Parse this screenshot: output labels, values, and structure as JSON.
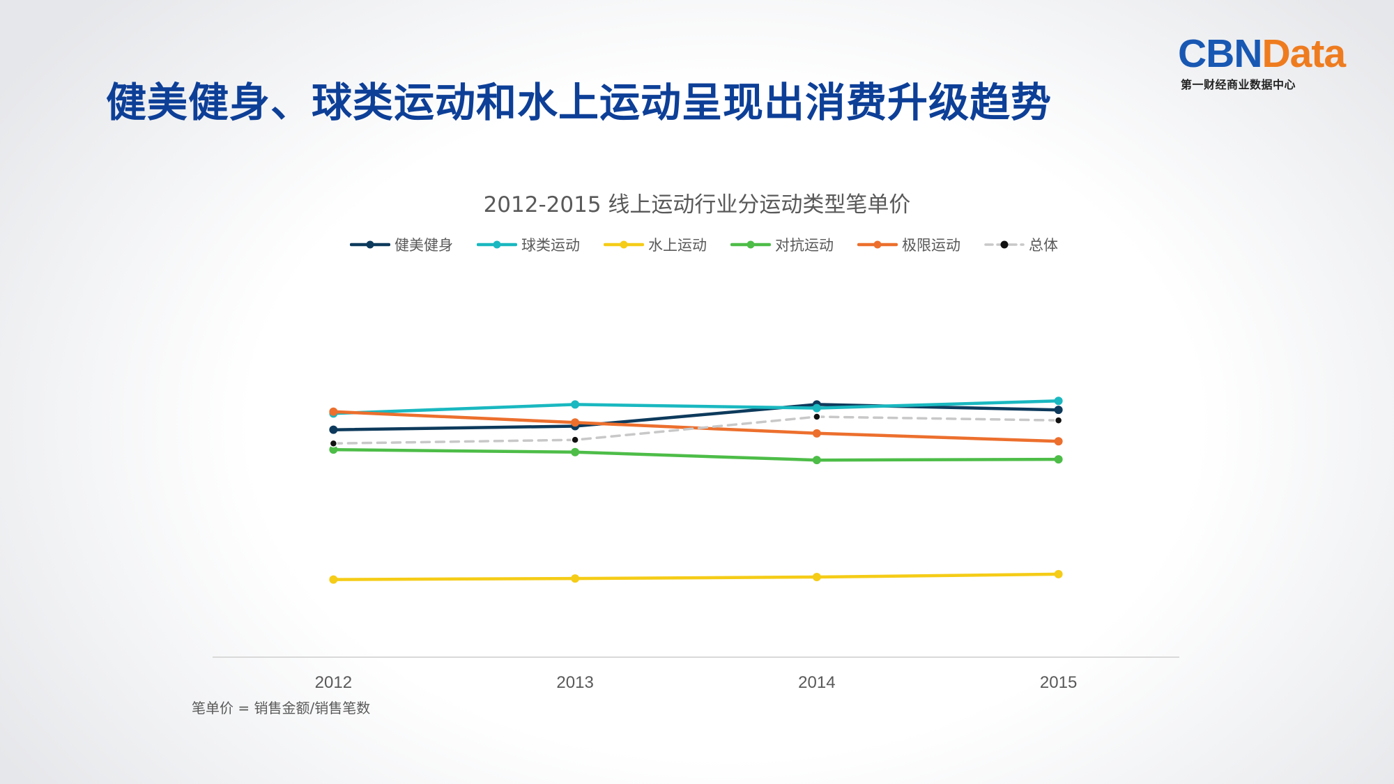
{
  "slide": {
    "title": "健美健身、球类运动和水上运动呈现出消费升级趋势",
    "footnote": "笔单价 = 销售金额/销售笔数"
  },
  "logo": {
    "main_a": "CBN",
    "main_b": "Data",
    "subtitle": "第一财经商业数据中心"
  },
  "colors": {
    "title": "#0d3f97",
    "logo_blue": "#1858b3",
    "logo_orange": "#ee7c1f"
  },
  "chart_data": {
    "type": "line",
    "title": "2012-2015 线上运动行业分运动类型笔单价",
    "categories": [
      "2012",
      "2013",
      "2014",
      "2015"
    ],
    "ylim": [
      0,
      100
    ],
    "y_axis_shown": false,
    "grid": false,
    "legend_position": "top",
    "series": [
      {
        "name": "健美健身",
        "values": [
          63.0,
          64.0,
          70.0,
          68.5
        ],
        "color": "#0d3a5c",
        "dashed": false
      },
      {
        "name": "球类运动",
        "values": [
          67.5,
          70.0,
          69.0,
          71.0
        ],
        "color": "#1ab8c0",
        "dashed": false
      },
      {
        "name": "水上运动",
        "values": [
          21.5,
          21.8,
          22.2,
          23.0
        ],
        "color": "#f5cc17",
        "dashed": false
      },
      {
        "name": "对抗运动",
        "values": [
          57.5,
          56.8,
          54.6,
          54.8
        ],
        "color": "#4dbd48",
        "dashed": false
      },
      {
        "name": "极限运动",
        "values": [
          68.0,
          65.0,
          62.0,
          59.8
        ],
        "color": "#ec6f2d",
        "dashed": false
      },
      {
        "name": "总体",
        "values": [
          59.2,
          60.2,
          66.6,
          65.6
        ],
        "color": "#c8c8c8",
        "marker_color": "#111111",
        "dashed": true
      }
    ]
  }
}
